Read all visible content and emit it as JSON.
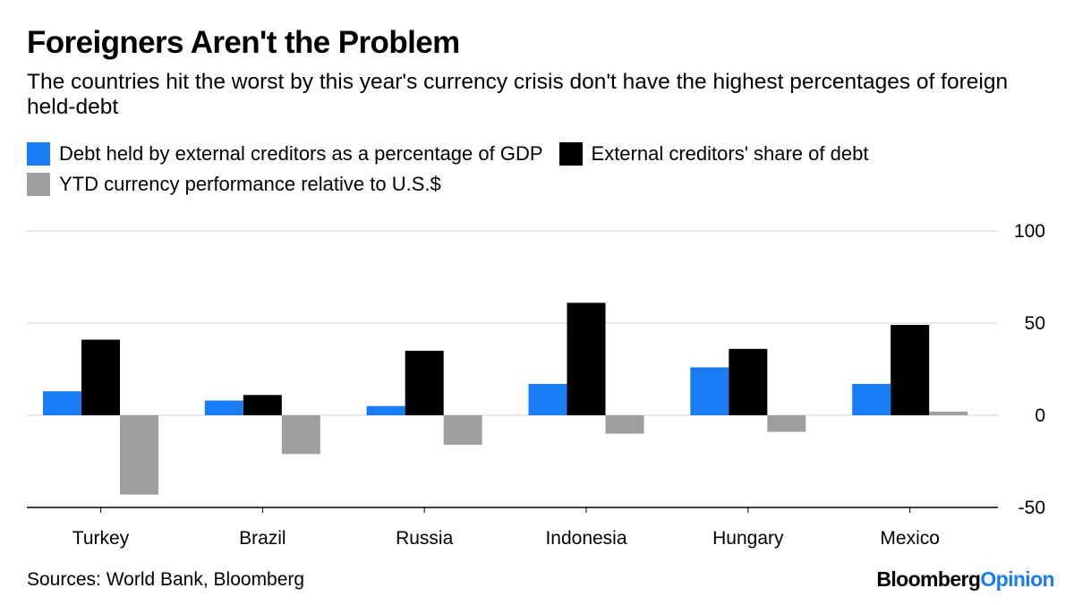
{
  "header": {
    "title": "Foreigners Aren't the Problem",
    "subtitle": "The countries hit the worst by this year's currency crisis don't have the highest percentages of foreign held-debt"
  },
  "legend": [
    {
      "label": "Debt held by external creditors as a percentage of GDP",
      "color": "#1a7cf5"
    },
    {
      "label": "External creditors' share of debt",
      "color": "#000000"
    },
    {
      "label": "YTD currency performance relative to U.S.$",
      "color": "#9e9e9e"
    }
  ],
  "chart_data": {
    "type": "bar",
    "categories": [
      "Turkey",
      "Brazil",
      "Russia",
      "Indonesia",
      "Hungary",
      "Mexico"
    ],
    "series": [
      {
        "name": "Debt held by external creditors as a percentage of GDP",
        "color": "#1a7cf5",
        "values": [
          13,
          8,
          5,
          17,
          26,
          17
        ]
      },
      {
        "name": "External creditors' share of debt",
        "color": "#000000",
        "values": [
          41,
          11,
          35,
          61,
          36,
          49
        ]
      },
      {
        "name": "YTD currency performance relative to U.S.$",
        "color": "#9e9e9e",
        "values": [
          -43,
          -21,
          -16,
          -10,
          -9,
          2
        ]
      }
    ],
    "yticks": [
      100,
      50,
      0,
      -50
    ],
    "ylim": [
      -50,
      100
    ],
    "grid": true
  },
  "footer": {
    "source": "Sources: World Bank, Bloomberg",
    "brand_part1": "Bloomberg",
    "brand_part2": "Opinion"
  }
}
